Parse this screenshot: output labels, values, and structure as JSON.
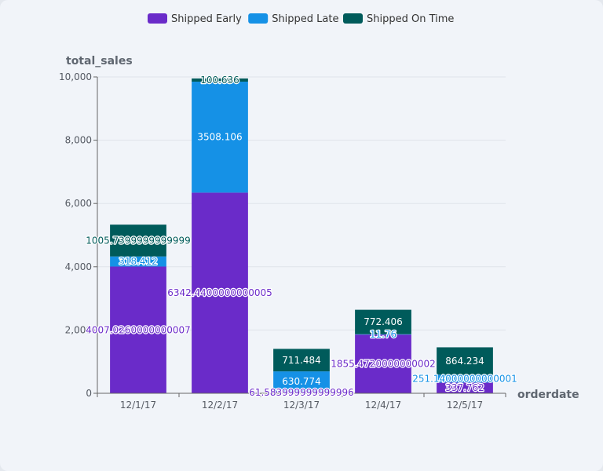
{
  "chart_data": {
    "type": "bar",
    "stacked": true,
    "categories": [
      "12/1/17",
      "12/2/17",
      "12/3/17",
      "12/4/17",
      "12/5/17"
    ],
    "series": [
      {
        "name": "Shipped Early",
        "color": "#6a2bc9",
        "values": [
          4007.0260000000007,
          6342.4400000000005,
          61.583999999999996,
          1855.4720000000002,
          337.762
        ],
        "labels": [
          "4007.0260000000007",
          "6342.4400000000005",
          "61.583999999999996",
          "1855.4720000000002",
          "337.762"
        ]
      },
      {
        "name": "Shipped Late",
        "color": "#1591e6",
        "values": [
          318.412,
          3508.106,
          630.774,
          11.76,
          251.14000000000001
        ],
        "labels": [
          "318.412",
          "3508.106",
          "630.774",
          "11.76",
          "251.14000000000001"
        ]
      },
      {
        "name": "Shipped On Time",
        "color": "#005b5b",
        "values": [
          1005.7399999999999,
          100.636,
          711.484,
          772.406,
          864.234
        ],
        "labels": [
          "1005.7399999999999",
          "100.636",
          "711.484",
          "772.406",
          "864.234"
        ]
      }
    ],
    "xlabel": "orderdate",
    "ylabel": "total_sales",
    "ylim": [
      0,
      10000
    ],
    "yticks": [
      0,
      2000,
      4000,
      6000,
      8000,
      10000
    ],
    "ytick_labels": [
      "0",
      "2,000",
      "4,000",
      "6,000",
      "8,000",
      "10,000"
    ],
    "grid": true,
    "legend_position": "top-center"
  }
}
